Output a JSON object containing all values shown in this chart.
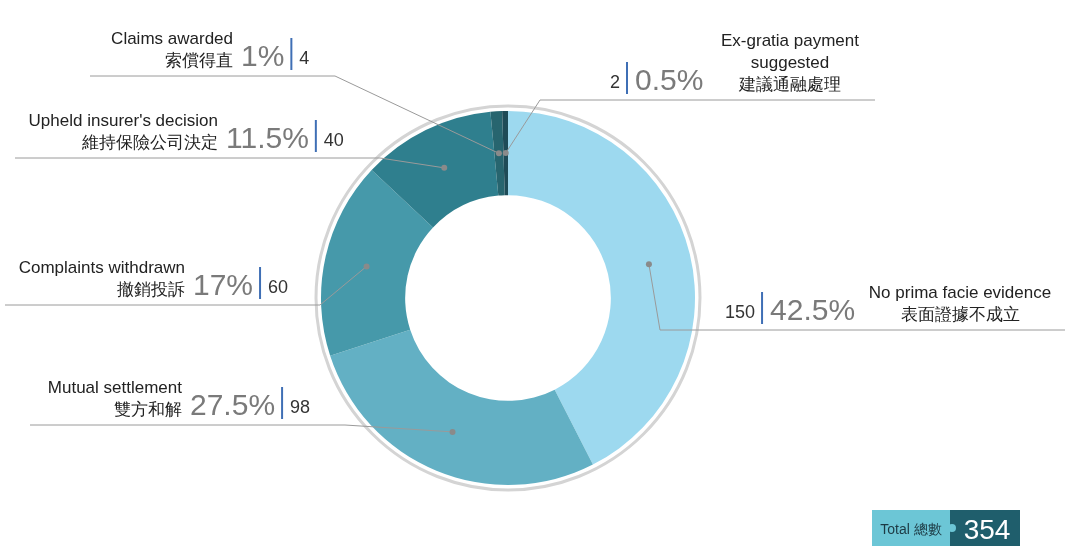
{
  "chart_data": {
    "type": "donut",
    "categories": [
      "No prima facie evidence\n表面證據不成立",
      "Mutual settlement\n雙方和解",
      "Complaints withdrawn\n撤銷投訴",
      "Upheld insurer's decision\n維持保險公司決定",
      "Claims awarded\n索償得直",
      "Ex-gratia payment\nsuggested\n建議通融處理"
    ],
    "values": [
      42.5,
      27.5,
      17,
      11.5,
      1,
      0.5
    ],
    "colors": [
      "#9dd9ef",
      "#63b0c4",
      "#4699aa",
      "#2f7f8e",
      "#27656f",
      "#1e4b57"
    ],
    "value_labels": [
      "150 42.5%",
      "27.5% 98",
      "17% 60",
      "11.5% 40",
      "1% 4",
      "2 0.5%"
    ],
    "annotations": [
      "Total 總數",
      "354"
    ]
  }
}
